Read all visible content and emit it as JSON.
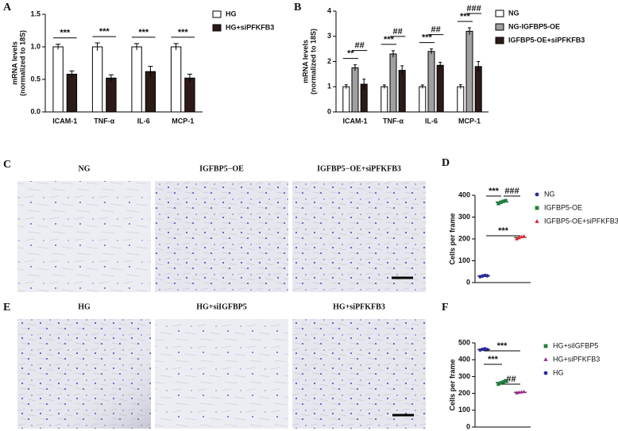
{
  "panel_labels": [
    "A",
    "B",
    "C",
    "D",
    "E",
    "F"
  ],
  "image_labels": {
    "C": [
      "NG",
      "IGFBP5−OE",
      "IGFBP5−OE+siPFKFB3"
    ],
    "E": [
      "HG",
      "HG+siIGFBP5",
      "HG+siPFKFB3"
    ]
  },
  "chart_data": [
    {
      "type": "bar",
      "y_label": [
        "mRNA levels",
        "(normalized to 18S)"
      ],
      "categories": [
        "ICAM-1",
        "TNF-α",
        "IL-6",
        "MCP-1"
      ],
      "series": [
        {
          "name": "HG",
          "color": "#ffffff",
          "values": [
            1.0,
            1.0,
            1.0,
            1.0
          ],
          "errors": [
            0.04,
            0.06,
            0.05,
            0.05
          ]
        },
        {
          "name": "HG+siPFKFB3",
          "color": "#2b1a17",
          "values": [
            0.58,
            0.52,
            0.62,
            0.52
          ],
          "errors": [
            0.05,
            0.05,
            0.08,
            0.06
          ]
        }
      ],
      "annotations": [
        "***",
        "***",
        "***",
        "***"
      ],
      "ylim": [
        0,
        1.5
      ],
      "yticks": [
        {
          "value": 0,
          "label": "0.0"
        },
        {
          "value": 0.5,
          "label": "0.5"
        },
        {
          "value": 1,
          "label": "1.0"
        },
        {
          "value": 1.5,
          "label": "1.5"
        }
      ]
    },
    {
      "type": "bar",
      "y_label": [
        "mRNA levels",
        "(normalized to 18S)"
      ],
      "categories": [
        "ICAM-1",
        "TNF-α",
        "IL-6",
        "MCP-1"
      ],
      "series": [
        {
          "name": "NG",
          "color": "#ffffff",
          "values": [
            1.0,
            1.0,
            1.0,
            1.0
          ],
          "errors": [
            0.08,
            0.07,
            0.07,
            0.08
          ]
        },
        {
          "name": "NG-IGFBP5-OE",
          "color": "#a0a0a0",
          "values": [
            1.75,
            2.3,
            2.4,
            3.2
          ],
          "errors": [
            0.12,
            0.13,
            0.1,
            0.14
          ]
        },
        {
          "name": "IGFBP5-OE+siPFKFB3",
          "color": "#2b1a17",
          "values": [
            1.1,
            1.65,
            1.85,
            1.8
          ],
          "errors": [
            0.2,
            0.18,
            0.12,
            0.2
          ]
        }
      ],
      "annotations": [
        "**",
        "***",
        "***",
        "***",
        "##",
        "##",
        "##",
        "###"
      ],
      "ylim": [
        0,
        4
      ],
      "yticks": [
        0,
        1,
        2,
        3,
        4
      ]
    },
    {
      "type": "dot",
      "y_label": [
        "Cells per frame"
      ],
      "series": [
        {
          "name": "NG",
          "color": "#2a2a9e",
          "marker": "circle",
          "values": [
            27,
            30,
            33,
            31
          ]
        },
        {
          "name": "IGFBP5-OE",
          "color": "#1e7f3e",
          "marker": "square",
          "values": [
            362,
            368,
            372,
            375
          ]
        },
        {
          "name": "IGFBP5-OE+siPFKFB3",
          "color": "#e0202a",
          "marker": "triangle",
          "values": [
            200,
            205,
            210,
            212
          ]
        }
      ],
      "annotations": [
        "***",
        "###",
        "***"
      ],
      "ylim": [
        0,
        400
      ],
      "yticks": [
        0,
        100,
        200,
        300,
        400
      ]
    },
    {
      "type": "dot",
      "y_label": [
        "Cells per frame"
      ],
      "series": [
        {
          "name": "HG+siIGFBP5",
          "color": "#1e7f3e",
          "marker": "square",
          "values": [
            255,
            262,
            268,
            275
          ]
        },
        {
          "name": "HG+siPFKFB3",
          "color": "#9b2a8e",
          "marker": "triangle",
          "values": [
            203,
            206,
            208,
            210
          ]
        },
        {
          "name": "HG",
          "color": "#2a2a9e",
          "marker": "circle",
          "values": [
            458,
            462,
            465,
            460
          ]
        }
      ],
      "annotations": [
        "***",
        "***",
        "##"
      ],
      "ylim": [
        0,
        500
      ],
      "yticks": [
        0,
        100,
        200,
        300,
        400,
        500
      ]
    }
  ]
}
